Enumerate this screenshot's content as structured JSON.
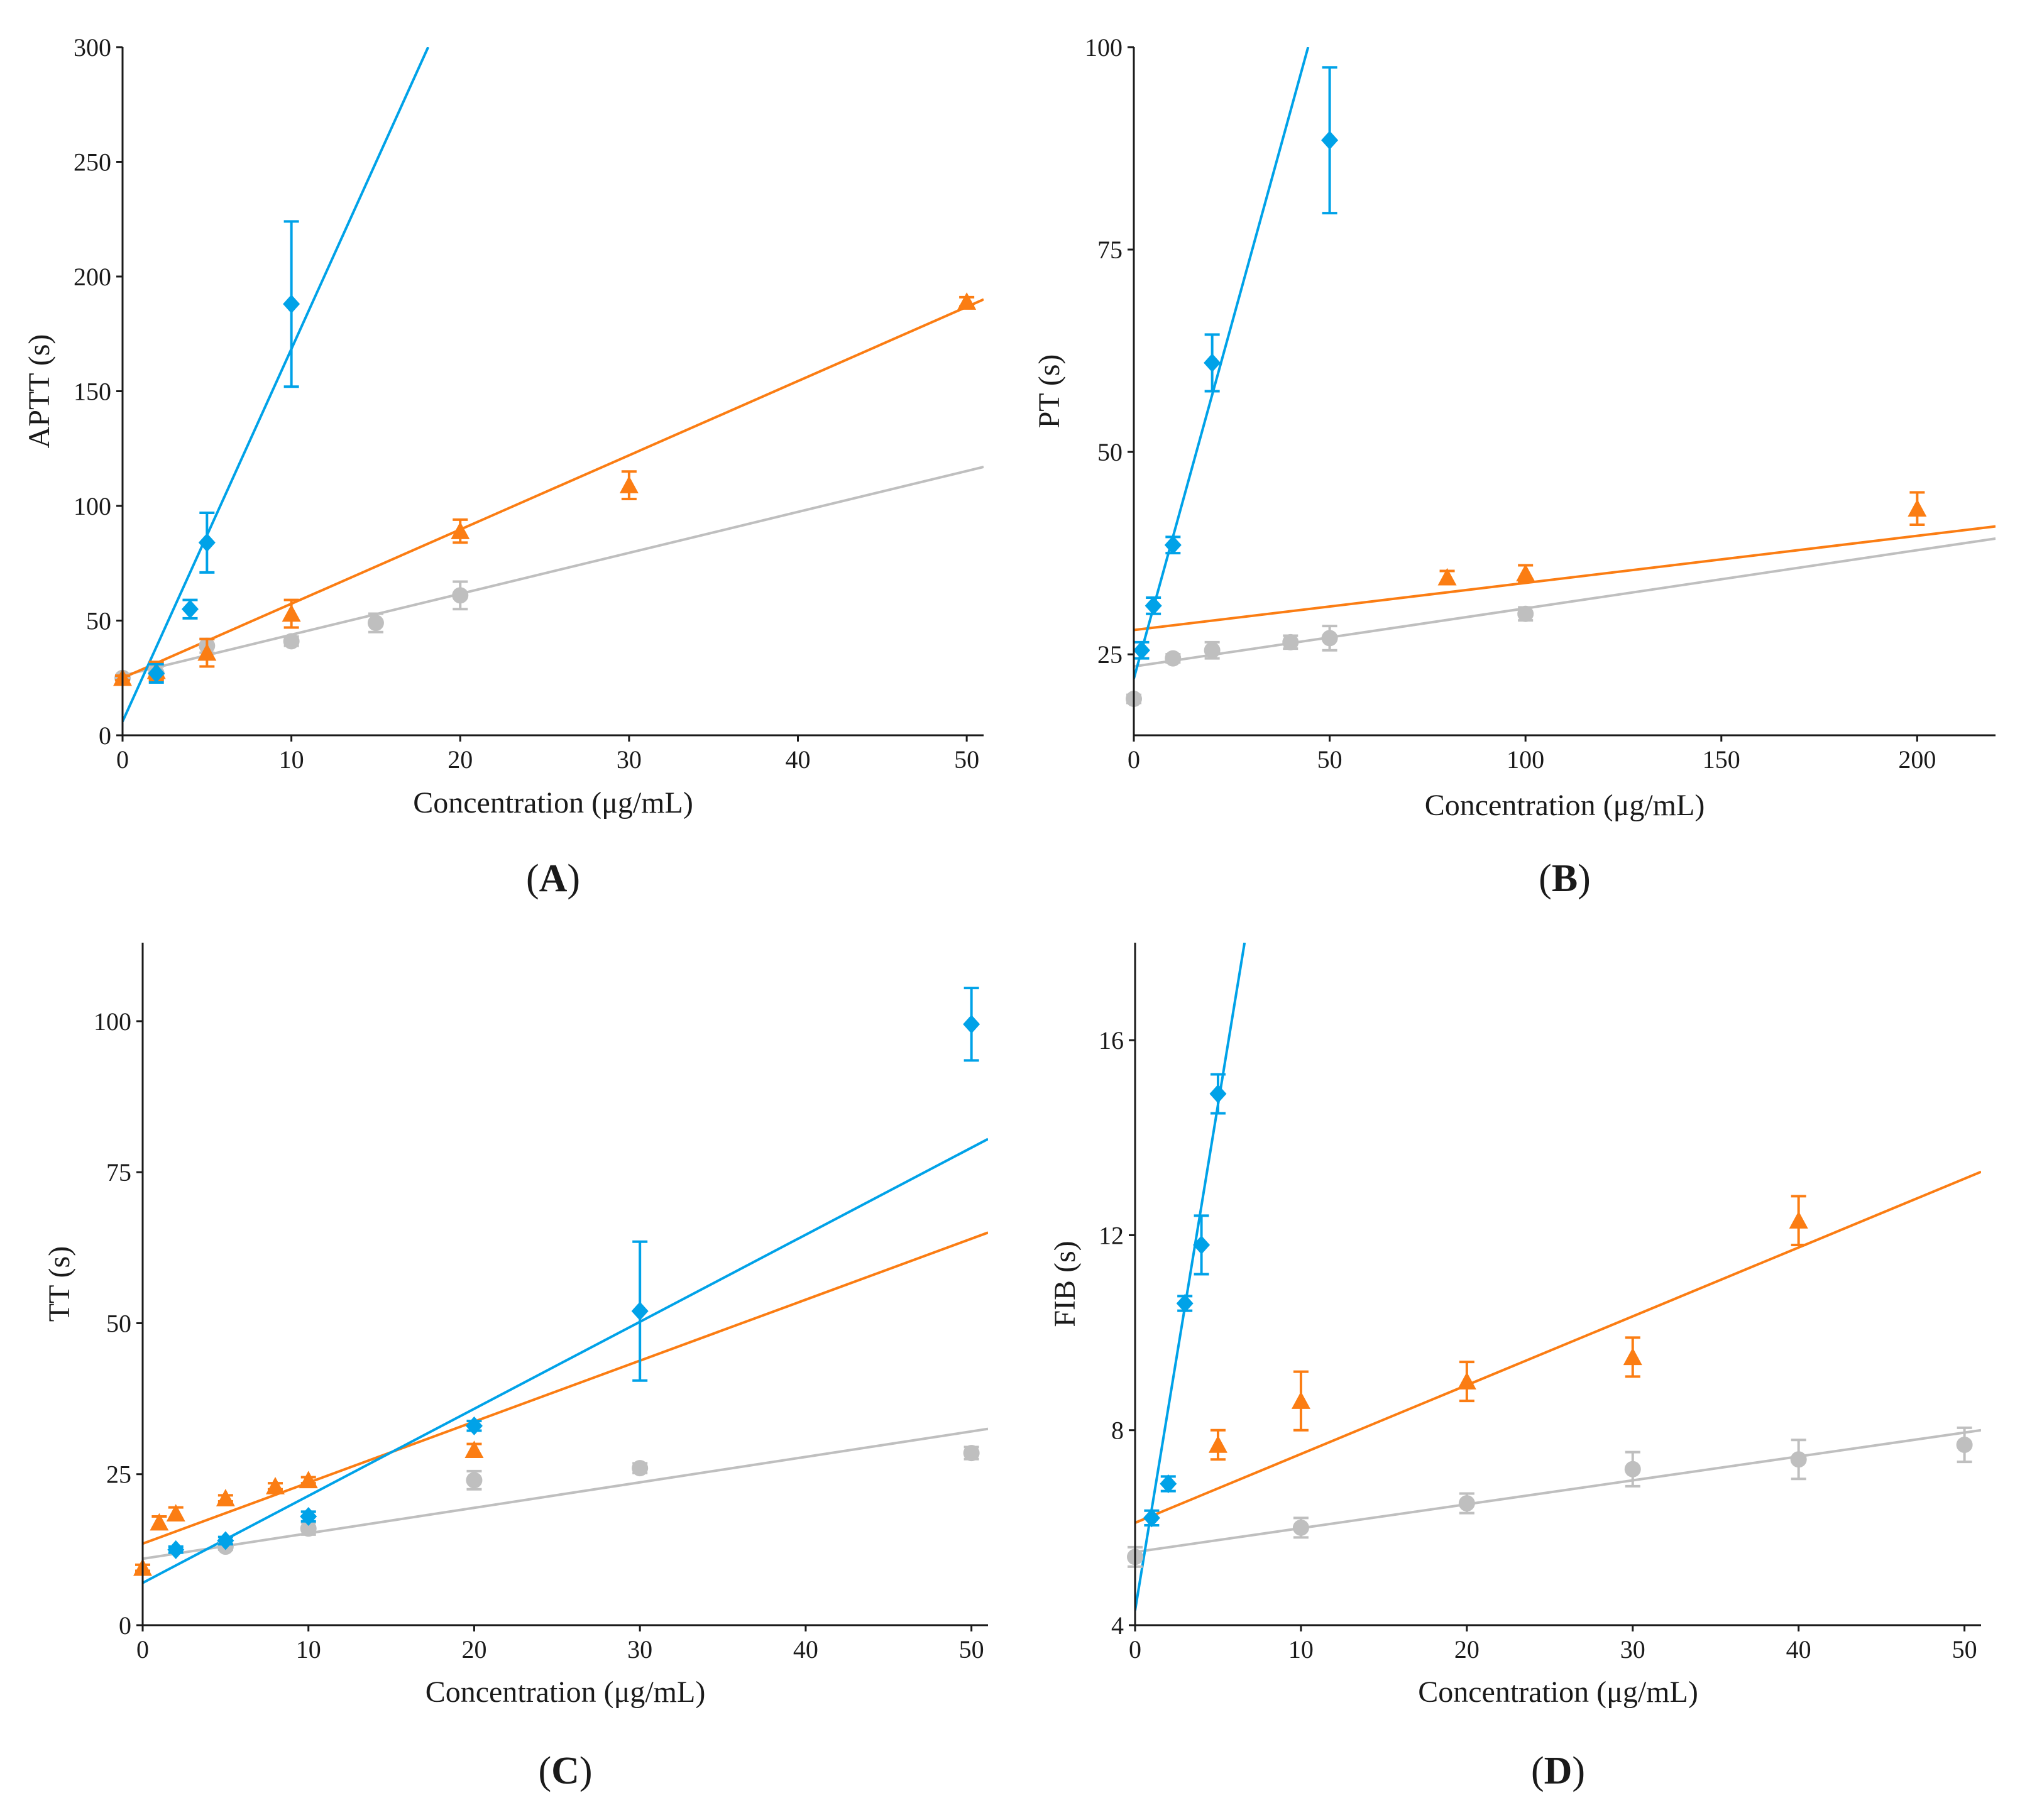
{
  "colors": {
    "blue": "#00a2e8",
    "orange": "#fb7d13",
    "gray": "#bfbfbf"
  },
  "chart_data": [
    {
      "panel": "A",
      "type": "scatter",
      "title": "(A)",
      "xlabel": "Concentration (μg/mL)",
      "ylabel": "APTT (s)",
      "xlim": [
        0,
        51
      ],
      "ylim": [
        0,
        300
      ],
      "xticks": [
        0,
        10,
        20,
        30,
        40,
        50
      ],
      "yticks": [
        0,
        50,
        100,
        150,
        200,
        250,
        300
      ],
      "xtick_labels": [
        "0",
        "10",
        "20",
        "30",
        "40",
        "50"
      ],
      "ytick_labels": [
        "0",
        "50",
        "100",
        "150",
        "200",
        "250",
        "300"
      ],
      "series": [
        {
          "name": "blue",
          "marker": "diamond",
          "color": "#00a2e8",
          "points": [
            [
              2,
              27,
              4
            ],
            [
              4,
              55,
              4
            ],
            [
              5,
              84,
              13
            ],
            [
              10,
              188,
              36
            ]
          ],
          "fit": [
            [
              0,
              6
            ],
            [
              18.1,
              300
            ]
          ]
        },
        {
          "name": "orange",
          "marker": "triangle",
          "color": "#fb7d13",
          "points": [
            [
              0,
              25,
              1
            ],
            [
              2,
              28,
              4
            ],
            [
              5,
              36,
              6
            ],
            [
              10,
              53,
              6
            ],
            [
              20,
              89,
              5
            ],
            [
              30,
              109,
              6
            ],
            [
              50,
              189,
              2
            ]
          ],
          "fit": [
            [
              0,
              25
            ],
            [
              51,
              190
            ]
          ]
        },
        {
          "name": "gray",
          "marker": "circle",
          "color": "#bfbfbf",
          "points": [
            [
              0,
              25,
              1
            ],
            [
              2,
              27,
              3
            ],
            [
              5,
              39,
              3
            ],
            [
              10,
              41,
              2
            ],
            [
              15,
              49,
              4
            ],
            [
              20,
              61,
              6
            ]
          ],
          "fit": [
            [
              0,
              26
            ],
            [
              51,
              117
            ]
          ]
        }
      ]
    },
    {
      "panel": "B",
      "type": "scatter",
      "title": "(B)",
      "xlabel": "Concentration (μg/mL)",
      "ylabel": "PT (s)",
      "xlim": [
        0,
        220
      ],
      "ylim": [
        15,
        100
      ],
      "xticks": [
        0,
        50,
        100,
        150,
        200
      ],
      "yticks": [
        25,
        50,
        75,
        100
      ],
      "xtick_labels": [
        "0",
        "50",
        "100",
        "150",
        "200"
      ],
      "ytick_labels": [
        "25",
        "50",
        "75",
        "100"
      ],
      "series": [
        {
          "name": "blue",
          "marker": "diamond",
          "color": "#00a2e8",
          "points": [
            [
              2,
              25.5,
              1
            ],
            [
              5,
              31,
              1
            ],
            [
              10,
              38.5,
              1
            ],
            [
              20,
              61,
              3.5
            ],
            [
              50,
              88.5,
              9
            ]
          ],
          "fit": [
            [
              0,
              22
            ],
            [
              44.5,
              100
            ]
          ]
        },
        {
          "name": "orange",
          "marker": "triangle",
          "color": "#fb7d13",
          "points": [
            [
              80,
              34.5,
              0.8
            ],
            [
              100,
              35,
              1
            ],
            [
              200,
              43,
              2
            ]
          ],
          "fit": [
            [
              0,
              28
            ],
            [
              220,
              40.8
            ]
          ]
        },
        {
          "name": "gray",
          "marker": "circle",
          "color": "#bfbfbf",
          "points": [
            [
              0,
              19.5,
              0.5
            ],
            [
              10,
              24.5,
              0.5
            ],
            [
              20,
              25.5,
              1
            ],
            [
              40,
              26.5,
              0.8
            ],
            [
              50,
              27,
              1.5
            ],
            [
              100,
              30,
              0.8
            ]
          ],
          "fit": [
            [
              0,
              23.5
            ],
            [
              220,
              39.3
            ]
          ]
        }
      ]
    },
    {
      "panel": "C",
      "type": "scatter",
      "title": "(C)",
      "xlabel": "Concentration (μg/mL)",
      "ylabel": "TT (s)",
      "xlim": [
        0,
        51
      ],
      "ylim": [
        0,
        113
      ],
      "xticks": [
        0,
        10,
        20,
        30,
        40,
        50
      ],
      "yticks": [
        0,
        25,
        50,
        75,
        100
      ],
      "xtick_labels": [
        "0",
        "10",
        "20",
        "30",
        "40",
        "50"
      ],
      "ytick_labels": [
        "0",
        "25",
        "50",
        "75",
        "100"
      ],
      "series": [
        {
          "name": "blue",
          "marker": "diamond",
          "color": "#00a2e8",
          "points": [
            [
              2,
              12.5,
              0.5
            ],
            [
              5,
              14,
              0.6
            ],
            [
              10,
              18,
              0.8
            ],
            [
              20,
              33,
              0.8
            ],
            [
              30,
              52,
              11.5
            ],
            [
              50,
              99.5,
              6
            ]
          ],
          "fit": [
            [
              0,
              7
            ],
            [
              51,
              80.5
            ]
          ]
        },
        {
          "name": "orange",
          "marker": "triangle",
          "color": "#fb7d13",
          "points": [
            [
              0,
              9.5,
              0.5
            ],
            [
              1,
              17,
              1
            ],
            [
              2,
              18.5,
              1
            ],
            [
              5,
              21,
              0.5
            ],
            [
              8,
              23,
              0.5
            ],
            [
              10,
              24,
              0.5
            ],
            [
              20,
              29,
              1
            ]
          ],
          "fit": [
            [
              0,
              13.5
            ],
            [
              51,
              65
            ]
          ]
        },
        {
          "name": "gray",
          "marker": "circle",
          "color": "#bfbfbf",
          "points": [
            [
              5,
              13,
              0.5
            ],
            [
              10,
              16,
              1
            ],
            [
              20,
              24,
              1.5
            ],
            [
              30,
              26,
              0.8
            ],
            [
              50,
              28.5,
              1
            ]
          ],
          "fit": [
            [
              0,
              11
            ],
            [
              51,
              32.5
            ]
          ]
        }
      ]
    },
    {
      "panel": "D",
      "type": "scatter",
      "title": "(D)",
      "xlabel": "Concentration (μg/mL)",
      "ylabel": "FIB (s)",
      "xlim": [
        0,
        51
      ],
      "ylim": [
        4,
        18
      ],
      "xticks": [
        0,
        10,
        20,
        30,
        40,
        50
      ],
      "yticks": [
        4,
        8,
        12,
        16
      ],
      "xtick_labels": [
        "0",
        "10",
        "20",
        "30",
        "40",
        "50"
      ],
      "ytick_labels": [
        "4",
        "8",
        "12",
        "16"
      ],
      "series": [
        {
          "name": "blue",
          "marker": "diamond",
          "color": "#00a2e8",
          "points": [
            [
              1,
              6.2,
              0.15
            ],
            [
              2,
              6.9,
              0.15
            ],
            [
              3,
              10.6,
              0.15
            ],
            [
              4,
              11.8,
              0.6
            ],
            [
              5,
              14.9,
              0.4
            ]
          ],
          "fit": [
            [
              0,
              4.3
            ],
            [
              6.6,
              18
            ]
          ]
        },
        {
          "name": "orange",
          "marker": "triangle",
          "color": "#fb7d13",
          "points": [
            [
              5,
              7.7,
              0.3
            ],
            [
              10,
              8.6,
              0.6
            ],
            [
              20,
              9.0,
              0.4
            ],
            [
              30,
              9.5,
              0.4
            ],
            [
              40,
              12.3,
              0.5
            ]
          ],
          "fit": [
            [
              0,
              6.1
            ],
            [
              51,
              13.3
            ]
          ]
        },
        {
          "name": "gray",
          "marker": "circle",
          "color": "#bfbfbf",
          "points": [
            [
              0,
              5.4,
              0.2
            ],
            [
              10,
              6.0,
              0.2
            ],
            [
              20,
              6.5,
              0.2
            ],
            [
              30,
              7.2,
              0.35
            ],
            [
              40,
              7.4,
              0.4
            ],
            [
              50,
              7.7,
              0.35
            ]
          ],
          "fit": [
            [
              0,
              5.5
            ],
            [
              51,
              8.0
            ]
          ]
        }
      ]
    }
  ]
}
